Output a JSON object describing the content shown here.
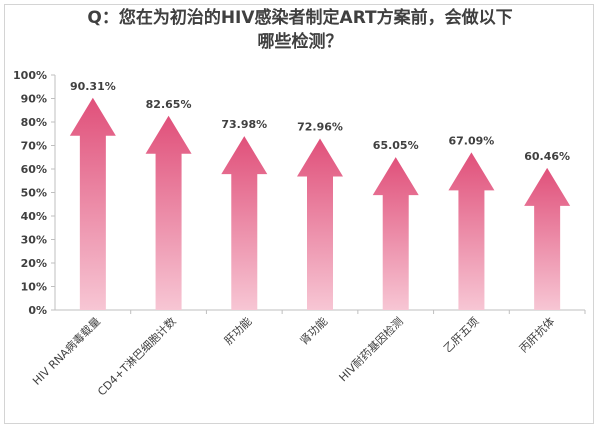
{
  "title_lines": [
    "Q：您在为初治的HIV感染者制定ART方案前，会做以下",
    "哪些检测？"
  ],
  "colors": {
    "arrow_top": "#e0507a",
    "arrow_bottom": "#f7c6d4",
    "axis": "#bfbfbf",
    "text": "#404040"
  },
  "chart_data": {
    "type": "bar",
    "title": "Q：您在为初治的HIV感染者制定ART方案前，会做以下哪些检测？",
    "categories": [
      "HIV RNA病毒载量",
      "CD4+T淋巴细胞计数",
      "肝功能",
      "肾功能",
      "HIV耐药基因检测",
      "乙肝五项",
      "丙肝抗体"
    ],
    "values": [
      90.31,
      82.65,
      73.98,
      72.96,
      65.05,
      67.09,
      60.46
    ],
    "data_labels": [
      "90.31%",
      "82.65%",
      "73.98%",
      "72.96%",
      "65.05%",
      "67.09%",
      "60.46%"
    ],
    "y_ticks": [
      "0%",
      "10%",
      "20%",
      "30%",
      "40%",
      "50%",
      "60%",
      "70%",
      "80%",
      "90%",
      "100%"
    ],
    "ylim": [
      0,
      100
    ],
    "xlabel": "",
    "ylabel": "",
    "mark_shape": "upward-arrow",
    "grid": false
  }
}
